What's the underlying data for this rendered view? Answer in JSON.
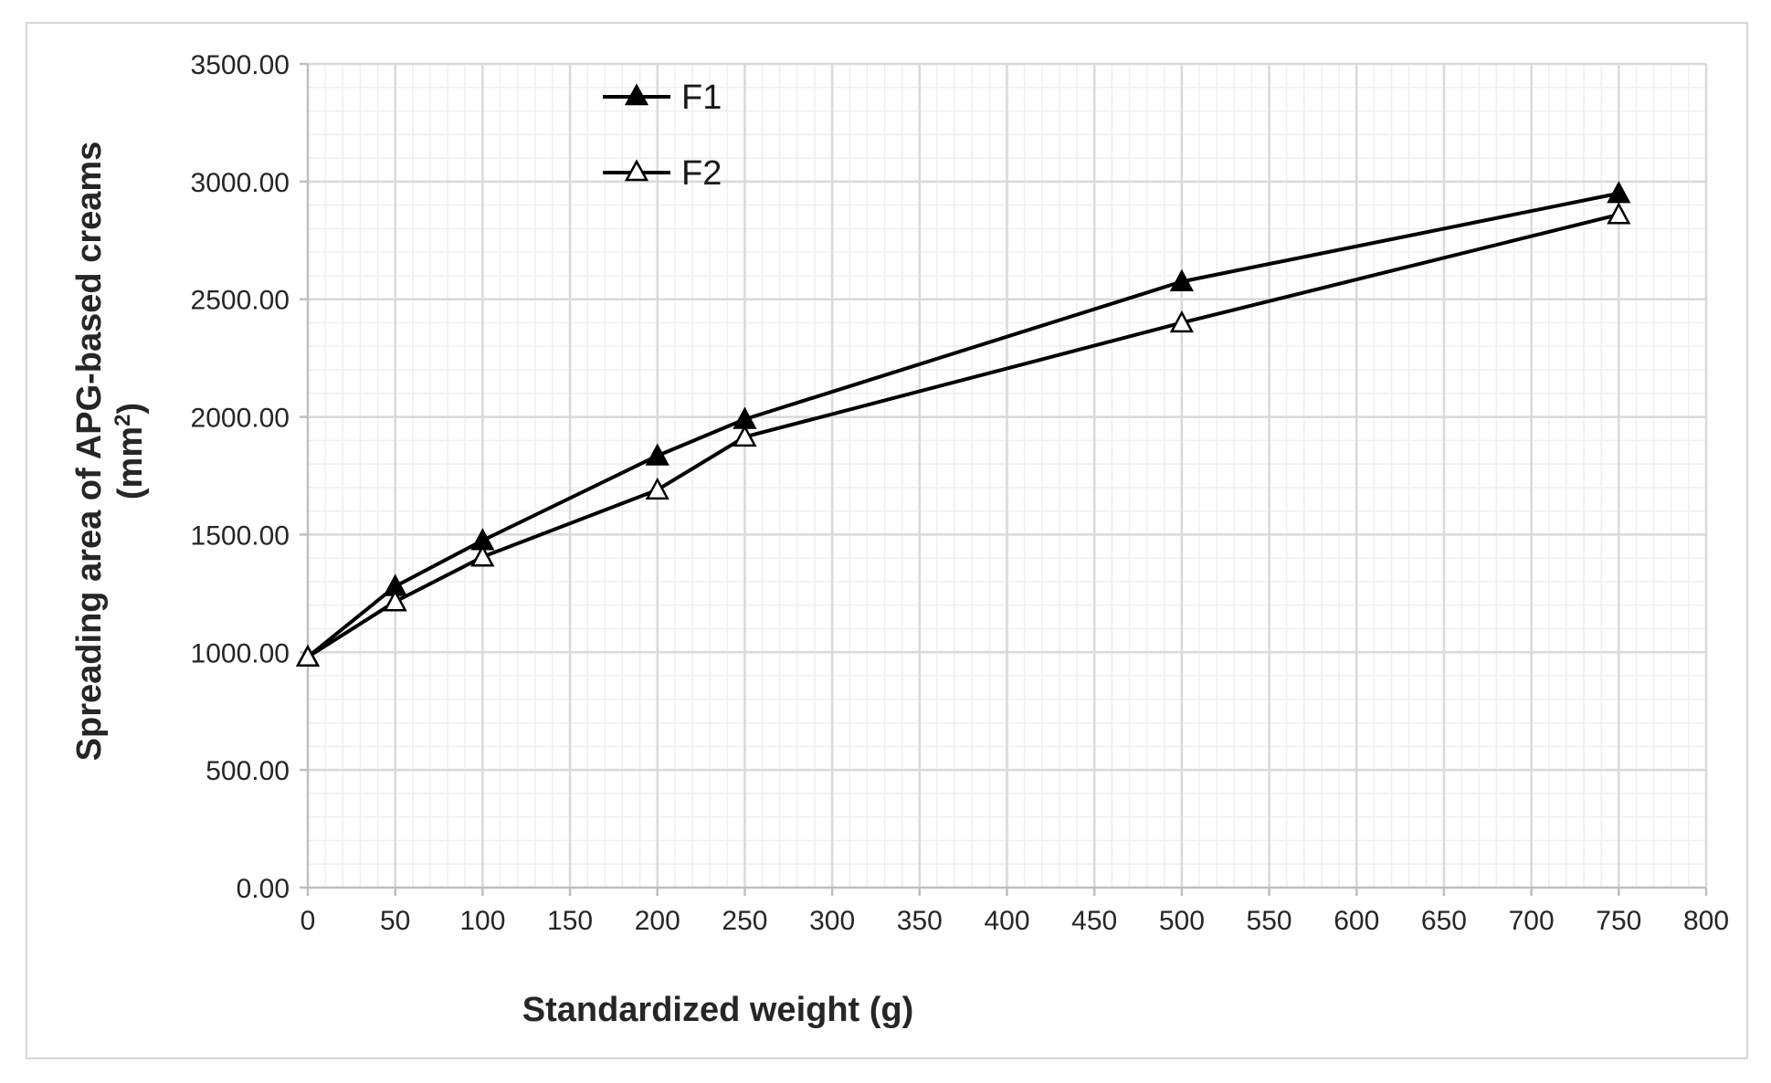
{
  "chart_data": {
    "type": "line",
    "title": "",
    "xlabel": "Standardized weight (g)",
    "ylabel_line1": "Spreading area of APG-based creams",
    "ylabel_line2_base": "(mm",
    "ylabel_line2_sup": "2",
    "ylabel_line2_end": ")",
    "xlim": [
      0,
      800
    ],
    "ylim": [
      0,
      3500
    ],
    "x_ticks": [
      "0",
      "50",
      "100",
      "150",
      "200",
      "250",
      "300",
      "350",
      "400",
      "450",
      "500",
      "550",
      "600",
      "650",
      "700",
      "750",
      "800"
    ],
    "y_ticks": [
      "0.00",
      "500.00",
      "1000.00",
      "1500.00",
      "2000.00",
      "2500.00",
      "3000.00",
      "3500.00"
    ],
    "x": [
      0,
      50,
      100,
      200,
      250,
      500,
      750
    ],
    "series": [
      {
        "name": "F1",
        "marker": "filled-triangle",
        "values": [
          980,
          1280,
          1475,
          1835,
          1990,
          2575,
          2950
        ]
      },
      {
        "name": "F2",
        "marker": "open-triangle",
        "values": [
          980,
          1215,
          1405,
          1690,
          1915,
          2400,
          2860
        ]
      }
    ],
    "grid": true,
    "minor_grid": true,
    "legend_position": "top-left",
    "colors": {
      "line": "#000000",
      "major_grid": "#d9d9d9",
      "minor_grid": "#efefef",
      "text": "#262626"
    }
  }
}
